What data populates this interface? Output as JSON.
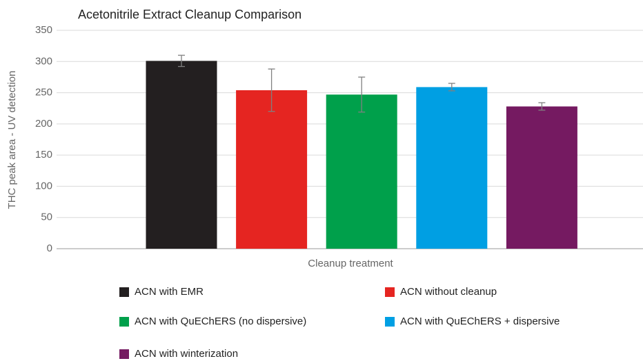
{
  "chart_data": {
    "type": "bar",
    "title": "Acetonitrile Extract Cleanup Comparison",
    "x_label": "Cleanup treatment",
    "y_label": "THC peak area - UV detection",
    "ylim": [
      0,
      350
    ],
    "yticks": [
      0,
      50,
      100,
      150,
      200,
      250,
      300,
      350
    ],
    "grid": true,
    "series": [
      {
        "name": "ACN with EMR",
        "color": "#231f20",
        "values": [
          301
        ],
        "errors": [
          9
        ]
      },
      {
        "name": "ACN without cleanup",
        "color": "#e52521",
        "values": [
          254
        ],
        "errors": [
          34
        ]
      },
      {
        "name": "ACN with QuEChERS (no dispersive)",
        "color": "#00a04b",
        "values": [
          247
        ],
        "errors": [
          28
        ]
      },
      {
        "name": "ACN with QuEChERS + dispersive",
        "color": "#009fe3",
        "values": [
          259
        ],
        "errors": [
          6
        ]
      },
      {
        "name": "ACN with winterization",
        "color": "#751a61",
        "values": [
          228
        ],
        "errors": [
          6
        ]
      }
    ]
  }
}
